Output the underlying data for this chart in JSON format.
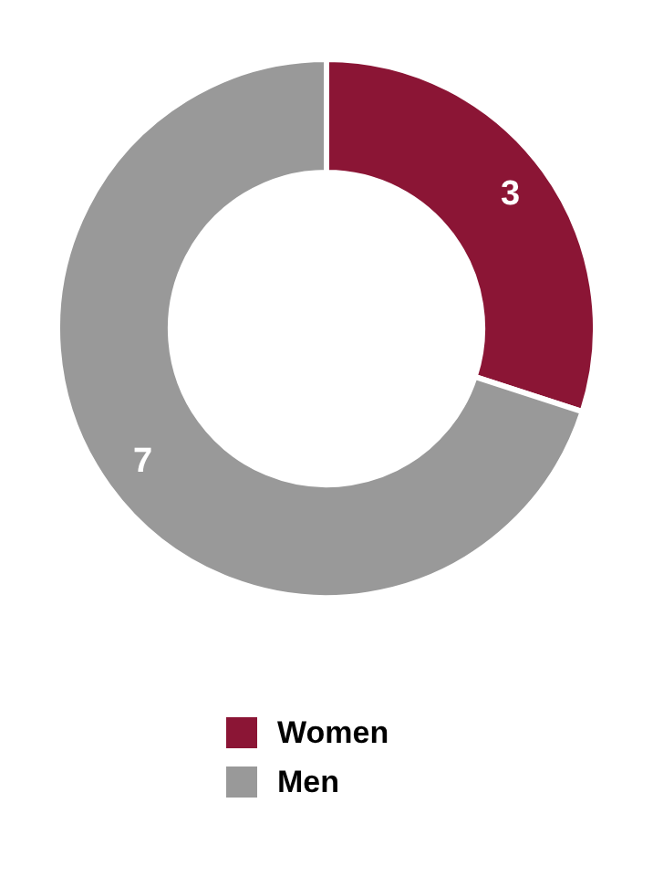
{
  "chart_data": {
    "type": "donut",
    "categories": [
      "Women",
      "Men"
    ],
    "values": [
      3,
      7
    ],
    "colors": [
      "#8b1535",
      "#999999"
    ],
    "data_labels": true,
    "legend": "bottom"
  }
}
